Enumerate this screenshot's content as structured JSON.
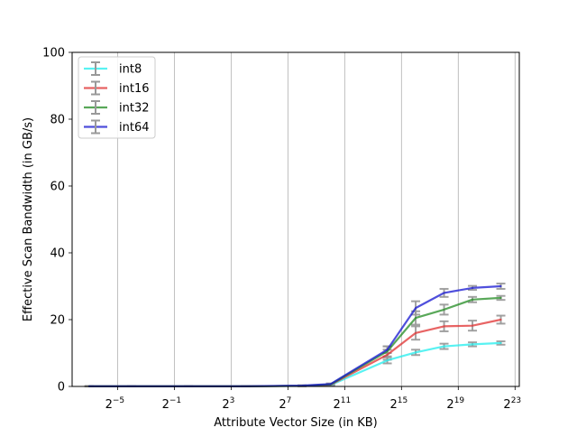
{
  "chart_data": {
    "type": "line",
    "xlabel": "Attribute Vector Size (in KB)",
    "ylabel": "Effective Scan Bandwidth (in GB/s)",
    "x_scale": "log2",
    "xlim_log2": [
      -8.2,
      23.3
    ],
    "ylim": [
      0,
      100
    ],
    "grid": "x",
    "legend_position": "top-left",
    "xticks": [
      {
        "exp": -5,
        "base": "2",
        "sup": "−5"
      },
      {
        "exp": -1,
        "base": "2",
        "sup": "−1"
      },
      {
        "exp": 3,
        "base": "2",
        "sup": "3"
      },
      {
        "exp": 7,
        "base": "2",
        "sup": "7"
      },
      {
        "exp": 11,
        "base": "2",
        "sup": "11"
      },
      {
        "exp": 15,
        "base": "2",
        "sup": "15"
      },
      {
        "exp": 19,
        "base": "2",
        "sup": "19"
      },
      {
        "exp": 23,
        "base": "2",
        "sup": "23"
      }
    ],
    "yticks": [
      "0",
      "20",
      "40",
      "60",
      "80",
      "100"
    ],
    "x_log2": [
      -7,
      -4,
      0,
      4,
      8,
      10,
      14,
      16,
      18,
      20,
      22
    ],
    "series": [
      {
        "name": "int8",
        "color": "#22eeee",
        "values": [
          0.05,
          0.05,
          0.05,
          0.05,
          0.15,
          0.4,
          7.8,
          10.2,
          12.0,
          12.6,
          13.0
        ],
        "errors": [
          0.05,
          0.05,
          0.05,
          0.05,
          0.1,
          0.2,
          0.9,
          0.8,
          0.8,
          0.6,
          0.5
        ]
      },
      {
        "name": "int16",
        "color": "#e03030",
        "values": [
          0.05,
          0.05,
          0.05,
          0.05,
          0.2,
          0.5,
          9.5,
          16.0,
          18.0,
          18.2,
          20.0
        ],
        "errors": [
          0.05,
          0.05,
          0.05,
          0.05,
          0.1,
          0.2,
          1.5,
          2.0,
          1.5,
          1.5,
          1.2
        ]
      },
      {
        "name": "int32",
        "color": "#228b22",
        "values": [
          0.05,
          0.05,
          0.05,
          0.05,
          0.2,
          0.6,
          10.5,
          20.5,
          23.0,
          26.0,
          26.5
        ],
        "errors": [
          0.05,
          0.05,
          0.05,
          0.05,
          0.1,
          0.2,
          1.5,
          2.0,
          1.5,
          0.8,
          0.6
        ]
      },
      {
        "name": "int64",
        "color": "#1414d0",
        "values": [
          0.05,
          0.05,
          0.05,
          0.05,
          0.25,
          0.7,
          11.0,
          23.5,
          28.0,
          29.5,
          30.0
        ],
        "errors": [
          0.05,
          0.05,
          0.05,
          0.05,
          0.1,
          0.2,
          1.0,
          2.0,
          1.2,
          0.6,
          0.8
        ]
      }
    ]
  }
}
